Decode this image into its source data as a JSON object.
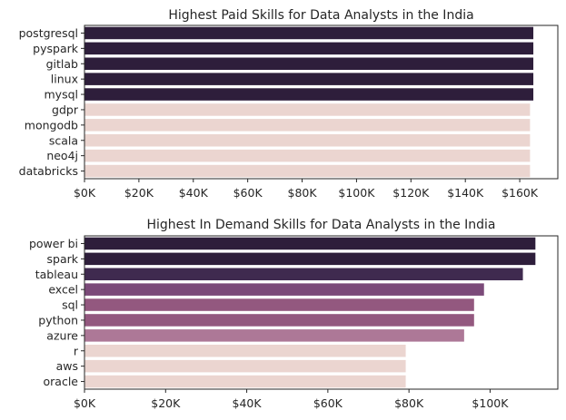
{
  "chart_data": [
    {
      "type": "bar",
      "orientation": "horizontal",
      "title": "Highest Paid Skills for Data Analysts in the India",
      "xlabel": "",
      "ylabel": "",
      "categories": [
        "postgresql",
        "pyspark",
        "gitlab",
        "linux",
        "mysql",
        "gdpr",
        "mongodb",
        "scala",
        "neo4j",
        "databricks"
      ],
      "values": [
        165000,
        165000,
        165000,
        165000,
        165000,
        163782,
        163782,
        163782,
        163782,
        163782
      ],
      "colors": [
        "#2e1e3b",
        "#2e1e3b",
        "#2e1e3b",
        "#2e1e3b",
        "#2e1e3b",
        "#ebd5d0",
        "#ebd5d0",
        "#ebd5d0",
        "#ebd5d0",
        "#ebd5d0"
      ],
      "xlim": [
        0,
        174000
      ],
      "xticks": [
        0,
        20000,
        40000,
        60000,
        80000,
        100000,
        120000,
        140000,
        160000
      ],
      "xtick_labels": [
        "$0K",
        "$20K",
        "$40K",
        "$60K",
        "$80K",
        "$100K",
        "$120K",
        "$140K",
        "$160K"
      ],
      "grid": false,
      "legend": "none"
    },
    {
      "type": "bar",
      "orientation": "horizontal",
      "title": "Highest In Demand Skills for Data Analysts in the India",
      "xlabel": "",
      "ylabel": "",
      "categories": [
        "power bi",
        "spark",
        "tableau",
        "excel",
        "sql",
        "python",
        "azure",
        "r",
        "aws",
        "oracle"
      ],
      "values": [
        111175,
        111175,
        108087,
        98500,
        96050,
        96050,
        93600,
        79200,
        79200,
        79200
      ],
      "colors": [
        "#2e1e3b",
        "#2e1e3b",
        "#3f2a4f",
        "#7b4a79",
        "#93587f",
        "#93587f",
        "#ad7897",
        "#ebd5d0",
        "#ebd5d0",
        "#ebd5d0"
      ],
      "xlim": [
        0,
        116700
      ],
      "xticks": [
        0,
        20000,
        40000,
        60000,
        80000,
        100000
      ],
      "xtick_labels": [
        "$0K",
        "$20K",
        "$40K",
        "$60K",
        "$80K",
        "$100K"
      ],
      "grid": false,
      "legend": "none"
    }
  ]
}
